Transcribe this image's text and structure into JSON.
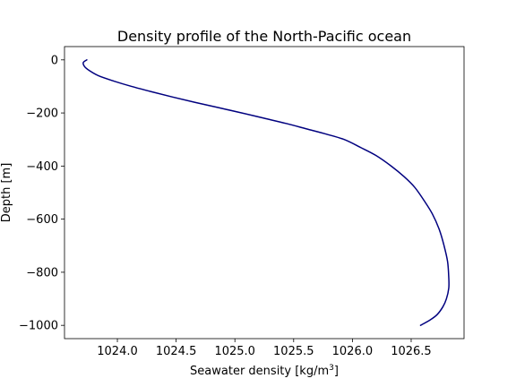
{
  "chart_data": {
    "type": "line",
    "title": "Density profile of the North-Pacific ocean",
    "xlabel": {
      "prefix": "Seawater density [kg/m",
      "superscript": "3",
      "suffix": "]"
    },
    "ylabel": "Depth [m]",
    "xlim": [
      1023.55,
      1026.95
    ],
    "ylim": [
      -1050,
      50
    ],
    "xticks": [
      1024.0,
      1024.5,
      1025.0,
      1025.5,
      1026.0,
      1026.5
    ],
    "xtick_labels": [
      "1024.0",
      "1024.5",
      "1025.0",
      "1025.5",
      "1026.0",
      "1026.5"
    ],
    "yticks": [
      0,
      -200,
      -400,
      -600,
      -800,
      -1000
    ],
    "ytick_labels": [
      "0",
      "−200",
      "−400",
      "−600",
      "−800",
      "−1000"
    ],
    "grid": false,
    "colors": {
      "line": "#00007f",
      "axes": "#000000",
      "background": "#ffffff"
    },
    "series": [
      {
        "x": [
          1023.74,
          1023.71,
          1023.72,
          1023.76,
          1023.84,
          1023.97,
          1024.12,
          1024.29,
          1024.47,
          1024.66,
          1024.86,
          1025.06,
          1025.25,
          1025.44,
          1025.61,
          1025.78,
          1025.93,
          1026.07,
          1026.2,
          1026.33,
          1026.44,
          1026.53,
          1026.61,
          1026.68,
          1026.74,
          1026.78,
          1026.81,
          1026.82,
          1026.82,
          1026.8,
          1026.77,
          1026.72,
          1026.66,
          1026.58
        ],
        "y": [
          0,
          -10,
          -25,
          -40,
          -60,
          -80,
          -100,
          -120,
          -140,
          -160,
          -180,
          -200,
          -220,
          -240,
          -260,
          -280,
          -300,
          -330,
          -360,
          -400,
          -440,
          -480,
          -530,
          -580,
          -640,
          -700,
          -760,
          -820,
          -860,
          -900,
          -930,
          -960,
          -980,
          -1000
        ]
      }
    ]
  }
}
